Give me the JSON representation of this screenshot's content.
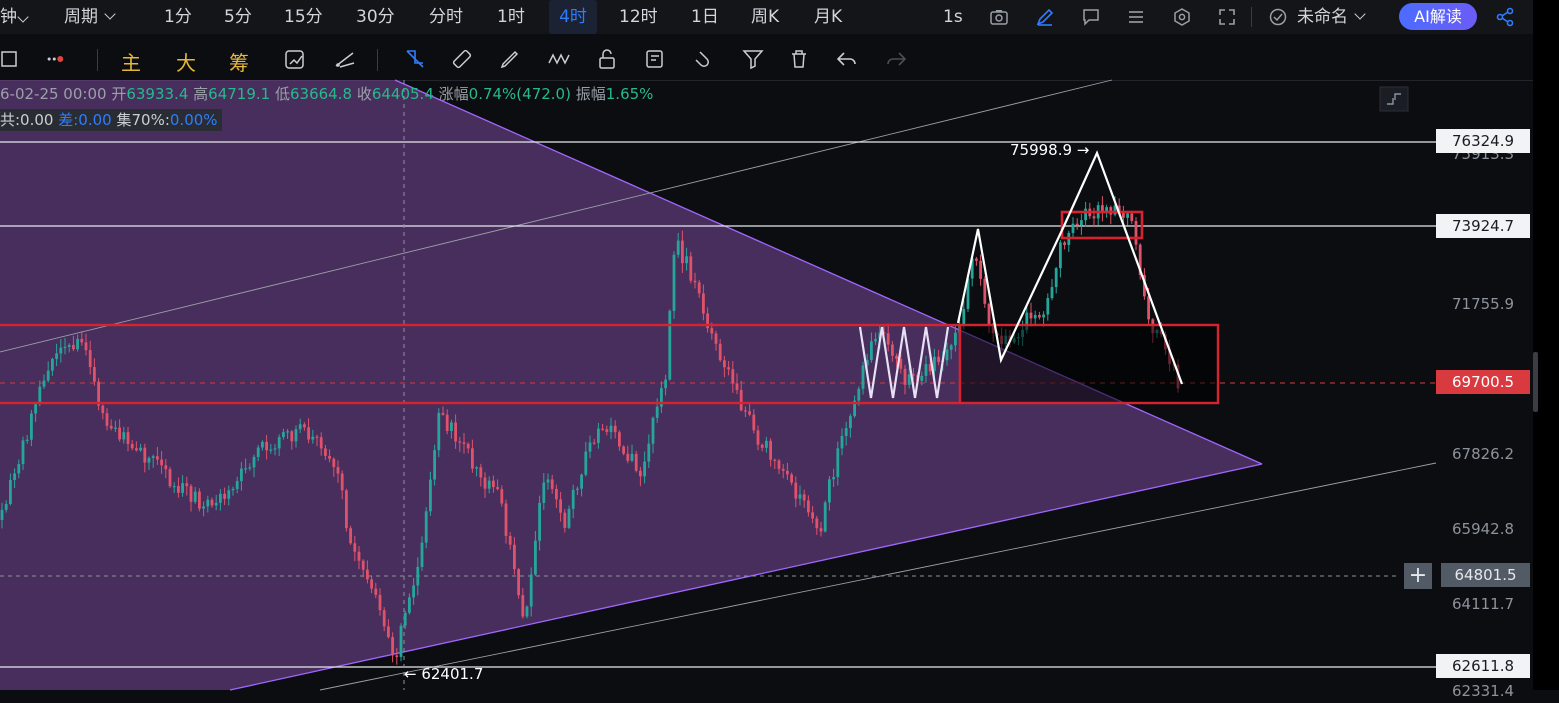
{
  "toolbar": {
    "left_cut": "钟",
    "period_label": "周期",
    "timeframes": [
      "1分",
      "5分",
      "15分",
      "30分",
      "分时",
      "1时",
      "4时",
      "12时",
      "1日",
      "周K",
      "月K"
    ],
    "active": "4时",
    "interval": "1s",
    "chart_name": "未命名",
    "ai_label": "AI解读"
  },
  "draw_tools": {
    "labels": [
      "主",
      "大",
      "筹"
    ],
    "label_color": "#e7b73a",
    "icons": [
      "rect-icon",
      "dots-icon",
      "redraw-icon",
      "measure-icon",
      "trend-line-icon",
      "ruler-icon",
      "brush-icon",
      "pattern-icon",
      "lock-icon",
      "note-icon",
      "magnet-icon",
      "filter-icon",
      "trash-icon",
      "undo-icon",
      "redo-icon"
    ]
  },
  "ohlc": {
    "date": "6-02-25 00:00",
    "open_label": "开",
    "open": "63933.4",
    "high_label": "高",
    "high": "64719.1",
    "low_label": "低",
    "low": "63664.8",
    "close_label": "收",
    "close": "64405.4",
    "chg_label": "涨幅",
    "chg": "0.74%(472.0)",
    "amp_label": "振幅",
    "amp": "1.65%"
  },
  "indicator": {
    "a": "共:0.00",
    "b_label": "差:",
    "b": "0.00",
    "c_label": "集70%:",
    "c": "0.00%"
  },
  "price_axis": {
    "labels": [
      "76324.9",
      "75913.3",
      "73924.7",
      "71755.9",
      "69700.5",
      "67826.2",
      "65942.8",
      "64801.5",
      "64111.7",
      "62611.8",
      "62331.4"
    ],
    "current": "69700.5",
    "crosshair": "64801.5"
  },
  "annotations": {
    "high": "75998.9 →",
    "low": "← 62401.7"
  },
  "colors": {
    "up": "#26a69a",
    "down": "#e0516a",
    "zone": "#7b4b9a",
    "tri_edge": "#a066ff",
    "box": "#d6232f",
    "accent": "#2f7cff"
  },
  "chart_data": {
    "type": "candlestick",
    "ylim": [
      61800,
      77300
    ],
    "series": [
      {
        "name": "ohlc",
        "seed": 20250225
      }
    ]
  }
}
